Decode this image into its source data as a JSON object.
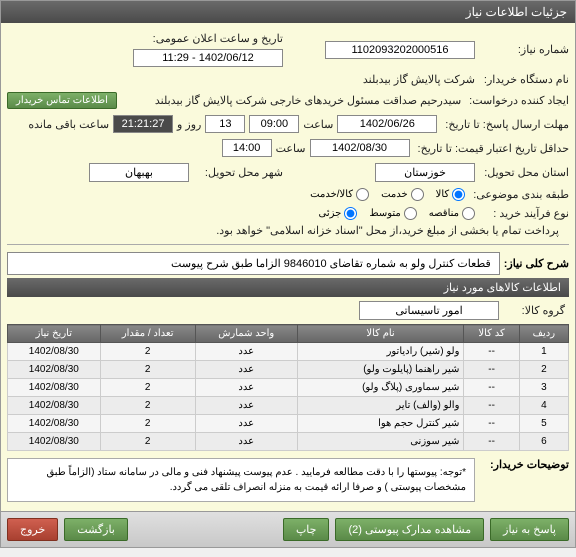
{
  "window": {
    "title": "جزئیات اطلاعات نیاز"
  },
  "top": {
    "need_no_label": "شماره نیاز:",
    "need_no": "1102093202000516",
    "pub_date_label": "تاریخ و ساعت اعلان عمومی:",
    "pub_date": "1402/06/12 - 11:29",
    "buyer_label": "نام دستگاه خریدار:",
    "buyer": "شرکت پالایش گاز بیدبلند",
    "creator_label": "ایجاد کننده درخواست:",
    "creator": "سیدرحیم صداقت مسئول خریدهای خارجی شرکت پالایش گاز بیدبلند",
    "contact_btn": "اطلاعات تماس خریدار",
    "deadline_label": "مهلت ارسال پاسخ: تا تاریخ:",
    "deadline_date": "1402/06/26",
    "hour_label": "ساعت",
    "deadline_hour": "09:00",
    "day_label": "روز و",
    "days": "13",
    "remain_time": "21:21:27",
    "remain_label": "ساعت باقی مانده",
    "validity_label": "حداقل تاریخ اعتبار قیمت: تا تاریخ:",
    "validity_date": "1402/08/30",
    "validity_hour": "14:00",
    "province_label": "استان محل تحویل:",
    "province": "خوزستان",
    "city_label": "شهر محل تحویل:",
    "city": "بهبهان",
    "category_label": "طبقه بندی موضوعی:",
    "cat_kala": "کالا",
    "cat_service": "خدمت",
    "cat_kalaservice": "کالا/خدمت",
    "process_label": "نوع فرآیند خرید :",
    "proc_tender": "مناقصه",
    "proc_medium": "متوسط",
    "proc_small": "جزئی",
    "pay_note": "پرداخت تمام یا بخشی از مبلغ خرید،از محل \"اسناد خزانه اسلامی\" خواهد بود."
  },
  "desc": {
    "label": "شرح کلی نیاز:",
    "text": "قطعات کنترل ولو به شماره تقاضای 9846010   الزاما طبق شرح پیوست"
  },
  "items_header": "اطلاعات کالاهای مورد نیاز",
  "group": {
    "label": "گروه کالا:",
    "value": "امور تاسیساتی"
  },
  "table": {
    "headers": [
      "ردیف",
      "کد کالا",
      "نام کالا",
      "واحد شمارش",
      "تعداد / مقدار",
      "تاریخ نیاز"
    ],
    "rows": [
      [
        "1",
        "--",
        "ولو (شیر) رادیاتور",
        "عدد",
        "2",
        "1402/08/30"
      ],
      [
        "2",
        "--",
        "شیر راهنما (پایلوت ولو)",
        "عدد",
        "2",
        "1402/08/30"
      ],
      [
        "3",
        "--",
        "شیر سماوری (پلاگ ولو)",
        "عدد",
        "2",
        "1402/08/30"
      ],
      [
        "4",
        "--",
        "والو (والف) تایر",
        "عدد",
        "2",
        "1402/08/30"
      ],
      [
        "5",
        "--",
        "شیر کنترل حجم هوا",
        "عدد",
        "2",
        "1402/08/30"
      ],
      [
        "6",
        "--",
        "شیر سوزنی",
        "عدد",
        "2",
        "1402/08/30"
      ]
    ]
  },
  "note": {
    "label": "توضیحات خریدار:",
    "text": "*توجه: پیوستها را با دقت مطالعه فرمایید . عدم پیوست پیشنهاد فنی و مالی در سامانه ستاد (الزاماً طبق مشخصات پیوستی ) و صرفا ارائه قیمت به منزله انصراف تلقی می گردد."
  },
  "footer": {
    "reply": "پاسخ به نیاز",
    "attach": "مشاهده مدارک پیوستی (2)",
    "print": "چاپ",
    "back": "بازگشت",
    "exit": "خروج"
  },
  "colors": {
    "header_bg": "#555555",
    "page_bg": "#fafadc",
    "btn_green": "#5a8a48",
    "btn_red": "#a84030"
  }
}
